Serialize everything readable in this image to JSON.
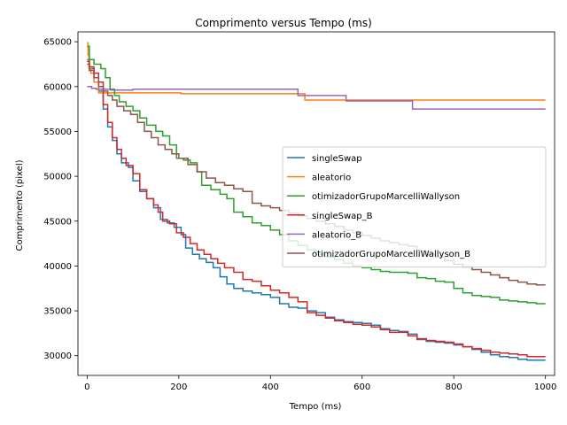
{
  "chart_data": {
    "type": "line",
    "title": "Comprimento versus Tempo (ms)",
    "xlabel": "Tempo (ms)",
    "ylabel": "Comprimento (pixel)",
    "xlim": [
      -20,
      1020
    ],
    "ylim": [
      27800,
      66100
    ],
    "xticks": [
      0,
      200,
      400,
      600,
      800,
      1000
    ],
    "yticks": [
      30000,
      35000,
      40000,
      45000,
      50000,
      55000,
      60000,
      65000
    ],
    "grid": false,
    "legend_position": "center-right",
    "step": true,
    "series": [
      {
        "name": "singleSwap",
        "color": "#1f77b4",
        "points": [
          [
            0,
            63000
          ],
          [
            5,
            62000
          ],
          [
            15,
            61000
          ],
          [
            25,
            59500
          ],
          [
            35,
            57500
          ],
          [
            45,
            55500
          ],
          [
            55,
            54000
          ],
          [
            65,
            52500
          ],
          [
            75,
            51500
          ],
          [
            90,
            51000
          ],
          [
            100,
            49500
          ],
          [
            115,
            48300
          ],
          [
            130,
            47500
          ],
          [
            145,
            46500
          ],
          [
            160,
            45200
          ],
          [
            175,
            44800
          ],
          [
            190,
            44300
          ],
          [
            205,
            43500
          ],
          [
            215,
            42000
          ],
          [
            230,
            41300
          ],
          [
            245,
            40800
          ],
          [
            260,
            40400
          ],
          [
            275,
            39800
          ],
          [
            290,
            38800
          ],
          [
            305,
            38000
          ],
          [
            320,
            37500
          ],
          [
            340,
            37200
          ],
          [
            360,
            37000
          ],
          [
            380,
            36800
          ],
          [
            400,
            36500
          ],
          [
            420,
            35800
          ],
          [
            440,
            35400
          ],
          [
            460,
            35300
          ],
          [
            480,
            35000
          ],
          [
            500,
            34800
          ],
          [
            520,
            34300
          ],
          [
            540,
            34000
          ],
          [
            560,
            33800
          ],
          [
            580,
            33700
          ],
          [
            600,
            33600
          ],
          [
            620,
            33400
          ],
          [
            640,
            33000
          ],
          [
            660,
            32800
          ],
          [
            680,
            32700
          ],
          [
            700,
            32400
          ],
          [
            720,
            31800
          ],
          [
            740,
            31600
          ],
          [
            760,
            31500
          ],
          [
            780,
            31400
          ],
          [
            800,
            31200
          ],
          [
            820,
            31000
          ],
          [
            840,
            30700
          ],
          [
            860,
            30400
          ],
          [
            880,
            30100
          ],
          [
            900,
            29900
          ],
          [
            920,
            29800
          ],
          [
            940,
            29600
          ],
          [
            960,
            29500
          ],
          [
            1000,
            29500
          ]
        ]
      },
      {
        "name": "aleatorio",
        "color": "#ff7f0e",
        "points": [
          [
            0,
            64900
          ],
          [
            2,
            63500
          ],
          [
            4,
            62000
          ],
          [
            8,
            61500
          ],
          [
            15,
            60500
          ],
          [
            25,
            59300
          ],
          [
            100,
            59300
          ],
          [
            205,
            59200
          ],
          [
            300,
            59200
          ],
          [
            455,
            59200
          ],
          [
            475,
            58500
          ],
          [
            700,
            58500
          ],
          [
            1000,
            58500
          ]
        ]
      },
      {
        "name": "otimizadorGrupoMarcelliWallyson",
        "color": "#2ca02c",
        "points": [
          [
            0,
            64500
          ],
          [
            5,
            63000
          ],
          [
            15,
            62500
          ],
          [
            30,
            62000
          ],
          [
            40,
            61000
          ],
          [
            50,
            59700
          ],
          [
            60,
            59000
          ],
          [
            70,
            58300
          ],
          [
            85,
            57800
          ],
          [
            100,
            57300
          ],
          [
            115,
            56500
          ],
          [
            130,
            55700
          ],
          [
            150,
            55000
          ],
          [
            165,
            54500
          ],
          [
            180,
            53500
          ],
          [
            195,
            52000
          ],
          [
            210,
            51800
          ],
          [
            225,
            51500
          ],
          [
            240,
            50500
          ],
          [
            250,
            49000
          ],
          [
            270,
            48500
          ],
          [
            290,
            48000
          ],
          [
            305,
            47500
          ],
          [
            320,
            46000
          ],
          [
            340,
            45500
          ],
          [
            360,
            44800
          ],
          [
            380,
            44500
          ],
          [
            400,
            44000
          ],
          [
            420,
            43500
          ],
          [
            440,
            42800
          ],
          [
            460,
            42300
          ],
          [
            480,
            41800
          ],
          [
            500,
            41300
          ],
          [
            520,
            41000
          ],
          [
            540,
            40700
          ],
          [
            560,
            40300
          ],
          [
            580,
            40000
          ],
          [
            600,
            39800
          ],
          [
            620,
            39600
          ],
          [
            640,
            39400
          ],
          [
            660,
            39300
          ],
          [
            700,
            39200
          ],
          [
            720,
            38700
          ],
          [
            740,
            38600
          ],
          [
            760,
            38300
          ],
          [
            780,
            38200
          ],
          [
            800,
            37500
          ],
          [
            820,
            37000
          ],
          [
            840,
            36700
          ],
          [
            860,
            36600
          ],
          [
            880,
            36500
          ],
          [
            900,
            36200
          ],
          [
            920,
            36100
          ],
          [
            940,
            36000
          ],
          [
            960,
            35900
          ],
          [
            980,
            35800
          ],
          [
            1000,
            35800
          ]
        ]
      },
      {
        "name": "singleSwap_B",
        "color": "#d62728",
        "points": [
          [
            0,
            62800
          ],
          [
            5,
            62200
          ],
          [
            15,
            61500
          ],
          [
            25,
            60500
          ],
          [
            35,
            58000
          ],
          [
            45,
            56000
          ],
          [
            55,
            54300
          ],
          [
            65,
            53000
          ],
          [
            75,
            52000
          ],
          [
            85,
            51200
          ],
          [
            100,
            50300
          ],
          [
            115,
            48500
          ],
          [
            130,
            47500
          ],
          [
            145,
            46800
          ],
          [
            155,
            46000
          ],
          [
            165,
            45000
          ],
          [
            180,
            44700
          ],
          [
            195,
            43700
          ],
          [
            210,
            43200
          ],
          [
            225,
            42500
          ],
          [
            240,
            41800
          ],
          [
            255,
            41300
          ],
          [
            270,
            40800
          ],
          [
            285,
            40300
          ],
          [
            300,
            39800
          ],
          [
            320,
            39300
          ],
          [
            340,
            38500
          ],
          [
            360,
            38300
          ],
          [
            380,
            37800
          ],
          [
            400,
            37300
          ],
          [
            420,
            37000
          ],
          [
            440,
            36500
          ],
          [
            460,
            36000
          ],
          [
            480,
            34800
          ],
          [
            500,
            34500
          ],
          [
            520,
            34200
          ],
          [
            540,
            33900
          ],
          [
            560,
            33700
          ],
          [
            580,
            33500
          ],
          [
            600,
            33400
          ],
          [
            620,
            33200
          ],
          [
            640,
            32900
          ],
          [
            660,
            32600
          ],
          [
            700,
            32200
          ],
          [
            720,
            31900
          ],
          [
            740,
            31700
          ],
          [
            760,
            31600
          ],
          [
            780,
            31500
          ],
          [
            800,
            31300
          ],
          [
            820,
            31000
          ],
          [
            840,
            30800
          ],
          [
            860,
            30600
          ],
          [
            880,
            30400
          ],
          [
            900,
            30300
          ],
          [
            920,
            30200
          ],
          [
            940,
            30100
          ],
          [
            960,
            29900
          ],
          [
            1000,
            29900
          ]
        ]
      },
      {
        "name": "aleatorio_B",
        "color": "#9467bd",
        "points": [
          [
            0,
            60000
          ],
          [
            10,
            59800
          ],
          [
            20,
            59700
          ],
          [
            50,
            59600
          ],
          [
            100,
            59700
          ],
          [
            455,
            59700
          ],
          [
            460,
            59000
          ],
          [
            560,
            59000
          ],
          [
            565,
            58400
          ],
          [
            705,
            58400
          ],
          [
            710,
            57500
          ],
          [
            1000,
            57500
          ]
        ]
      },
      {
        "name": "otimizadorGrupoMarcelliWallyson_B",
        "color": "#8c564b",
        "points": [
          [
            0,
            62500
          ],
          [
            5,
            61800
          ],
          [
            15,
            61000
          ],
          [
            25,
            60000
          ],
          [
            35,
            59500
          ],
          [
            45,
            59000
          ],
          [
            55,
            58500
          ],
          [
            65,
            57800
          ],
          [
            80,
            57300
          ],
          [
            95,
            56900
          ],
          [
            110,
            56000
          ],
          [
            125,
            55000
          ],
          [
            140,
            54300
          ],
          [
            155,
            53500
          ],
          [
            170,
            53000
          ],
          [
            185,
            52500
          ],
          [
            200,
            52000
          ],
          [
            220,
            51300
          ],
          [
            240,
            50500
          ],
          [
            260,
            49800
          ],
          [
            280,
            49300
          ],
          [
            300,
            49000
          ],
          [
            320,
            48600
          ],
          [
            340,
            48300
          ],
          [
            360,
            47000
          ],
          [
            380,
            46700
          ],
          [
            400,
            46500
          ],
          [
            420,
            46200
          ],
          [
            440,
            45900
          ],
          [
            460,
            45600
          ],
          [
            480,
            45300
          ],
          [
            500,
            45000
          ],
          [
            520,
            44700
          ],
          [
            540,
            44400
          ],
          [
            560,
            44000
          ],
          [
            580,
            43700
          ],
          [
            600,
            43400
          ],
          [
            620,
            43100
          ],
          [
            640,
            42800
          ],
          [
            660,
            42600
          ],
          [
            680,
            42400
          ],
          [
            700,
            42200
          ],
          [
            720,
            41700
          ],
          [
            740,
            41300
          ],
          [
            760,
            41000
          ],
          [
            780,
            40600
          ],
          [
            800,
            40200
          ],
          [
            820,
            39900
          ],
          [
            840,
            39600
          ],
          [
            860,
            39300
          ],
          [
            880,
            39000
          ],
          [
            900,
            38700
          ],
          [
            920,
            38400
          ],
          [
            940,
            38200
          ],
          [
            960,
            38000
          ],
          [
            980,
            37900
          ],
          [
            1000,
            37900
          ]
        ]
      }
    ]
  }
}
